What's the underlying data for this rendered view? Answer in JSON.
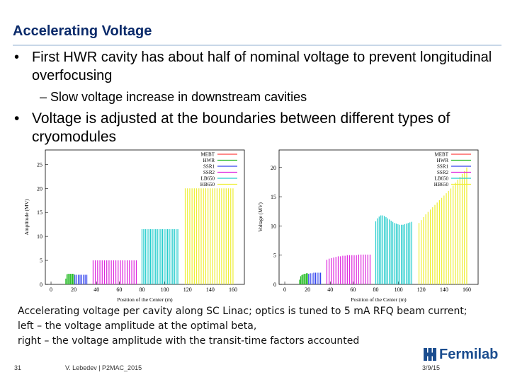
{
  "slide": {
    "title": "Accelerating Voltage",
    "bullets": [
      {
        "text": "First HWR cavity has about half of nominal voltage to prevent longitudinal overfocusing",
        "sub": [
          "Slow voltage increase in downstream cavities"
        ]
      },
      {
        "text": "Voltage is adjusted at the boundaries between different types of cryomodules"
      }
    ],
    "caption_lines": [
      "Accelerating voltage per cavity along SC Linac; optics is tuned to 5 mA RFQ beam current;",
      "left – the voltage amplitude at the optimal beta,",
      "right – the voltage amplitude with the transit-time factors accounted"
    ],
    "footer": {
      "page": "31",
      "author": "V. Lebedev | P2MAC_2015",
      "date": "3/9/15"
    },
    "logo_text": "Fermilab"
  },
  "chart_data": [
    {
      "type": "bar",
      "ylabel": "Amplitude (MV)",
      "xlabel": "Position of the Center (m)",
      "xlim": [
        -5,
        170
      ],
      "ylim": [
        0,
        28
      ],
      "xticks": [
        0,
        20,
        40,
        60,
        80,
        100,
        120,
        140,
        160
      ],
      "yticks": [
        0,
        5,
        10,
        15,
        20,
        25
      ],
      "legend_position": "top-right",
      "series": [
        {
          "name": "MEBT",
          "color": "#ff4444",
          "x": [],
          "values": []
        },
        {
          "name": "HWR",
          "color": "#22bb22",
          "x": [
            13,
            14,
            15,
            16,
            17,
            18,
            19,
            20
          ],
          "values": [
            1.2,
            2.1,
            2.2,
            2.2,
            2.2,
            2.2,
            2.2,
            2.2
          ]
        },
        {
          "name": "SSR1",
          "color": "#3344ee",
          "x": [
            21,
            22.5,
            24,
            25.5,
            27,
            28.5,
            30,
            31.5
          ],
          "values": [
            2.0,
            2.0,
            2.0,
            2.0,
            2.0,
            2.0,
            2.0,
            2.0
          ]
        },
        {
          "name": "SSR2",
          "color": "#dd22dd",
          "x": [
            37,
            39,
            41,
            43,
            45,
            47,
            49,
            51,
            53,
            55,
            57,
            59,
            61,
            63,
            65,
            67,
            69,
            71,
            73,
            75
          ],
          "values": [
            5.0,
            5.0,
            5.0,
            5.0,
            5.0,
            5.0,
            5.0,
            5.0,
            5.0,
            5.0,
            5.0,
            5.0,
            5.0,
            5.0,
            5.0,
            5.0,
            5.0,
            5.0,
            5.0,
            5.0
          ]
        },
        {
          "name": "LB650",
          "color": "#22cccc",
          "x": [
            80,
            81.5,
            83,
            84.5,
            86,
            87.5,
            89,
            90.5,
            92,
            93.5,
            95,
            96.5,
            98,
            99.5,
            101,
            102.5,
            104,
            105.5,
            107,
            108.5,
            110,
            111.5
          ],
          "values": [
            11.5,
            11.5,
            11.5,
            11.5,
            11.5,
            11.5,
            11.5,
            11.5,
            11.5,
            11.5,
            11.5,
            11.5,
            11.5,
            11.5,
            11.5,
            11.5,
            11.5,
            11.5,
            11.5,
            11.5,
            11.5,
            11.5
          ]
        },
        {
          "name": "HB650",
          "color": "#eeee33",
          "x": [
            118,
            120,
            122,
            124,
            126,
            128,
            130,
            132,
            134,
            136,
            138,
            140,
            142,
            144,
            146,
            148,
            150,
            152,
            154,
            156,
            158,
            160
          ],
          "values": [
            20,
            20,
            20,
            20,
            20,
            20,
            20,
            20,
            20,
            20,
            20,
            20,
            20,
            20,
            20,
            20,
            20,
            20,
            20,
            20,
            20,
            20
          ]
        }
      ]
    },
    {
      "type": "bar",
      "ylabel": "Voltage (MV)",
      "xlabel": "Position of the Center (m)",
      "xlim": [
        -5,
        170
      ],
      "ylim": [
        0,
        23
      ],
      "xticks": [
        0,
        20,
        40,
        60,
        80,
        100,
        120,
        140,
        160
      ],
      "yticks": [
        0,
        5,
        10,
        15,
        20
      ],
      "legend_position": "top-right",
      "series": [
        {
          "name": "MEBT",
          "color": "#ff4444",
          "x": [],
          "values": []
        },
        {
          "name": "HWR",
          "color": "#22bb22",
          "x": [
            13,
            14,
            15,
            16,
            17,
            18,
            19,
            20
          ],
          "values": [
            0.8,
            1.4,
            1.6,
            1.7,
            1.8,
            1.8,
            1.9,
            1.9
          ]
        },
        {
          "name": "SSR1",
          "color": "#3344ee",
          "x": [
            21,
            22.5,
            24,
            25.5,
            27,
            28.5,
            30,
            31.5
          ],
          "values": [
            1.8,
            1.9,
            1.9,
            2.0,
            2.0,
            2.0,
            2.0,
            2.0
          ]
        },
        {
          "name": "SSR2",
          "color": "#dd22dd",
          "x": [
            37,
            39,
            41,
            43,
            45,
            47,
            49,
            51,
            53,
            55,
            57,
            59,
            61,
            63,
            65,
            67,
            69,
            71,
            73,
            75
          ],
          "values": [
            4.2,
            4.4,
            4.5,
            4.6,
            4.7,
            4.8,
            4.8,
            4.9,
            4.9,
            5.0,
            5.0,
            5.0,
            5.0,
            5.0,
            5.1,
            5.1,
            5.1,
            5.1,
            5.1,
            5.1
          ]
        },
        {
          "name": "LB650",
          "color": "#22cccc",
          "x": [
            80,
            81.5,
            83,
            84.5,
            86,
            87.5,
            89,
            90.5,
            92,
            93.5,
            95,
            96.5,
            98,
            99.5,
            101,
            102.5,
            104,
            105.5,
            107,
            108.5,
            110,
            111.5
          ],
          "values": [
            10.8,
            11.3,
            11.6,
            11.8,
            11.8,
            11.7,
            11.5,
            11.3,
            11.1,
            10.9,
            10.7,
            10.5,
            10.4,
            10.3,
            10.2,
            10.2,
            10.2,
            10.3,
            10.4,
            10.5,
            10.6,
            10.7
          ]
        },
        {
          "name": "HB650",
          "color": "#eeee33",
          "x": [
            118,
            120,
            122,
            124,
            126,
            128,
            130,
            132,
            134,
            136,
            138,
            140,
            142,
            144,
            146,
            148,
            150,
            152,
            154,
            156,
            158,
            160
          ],
          "values": [
            10.5,
            11.0,
            11.5,
            12.0,
            12.4,
            12.8,
            13.2,
            13.6,
            14.0,
            14.4,
            14.8,
            15.2,
            15.6,
            16.0,
            16.4,
            16.9,
            17.4,
            17.9,
            18.4,
            18.9,
            19.4,
            20.0
          ]
        }
      ]
    }
  ]
}
